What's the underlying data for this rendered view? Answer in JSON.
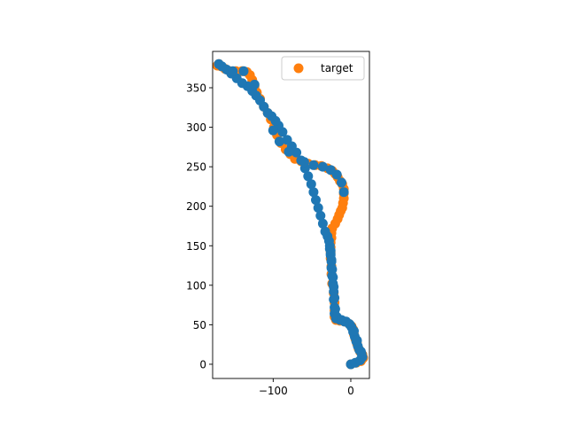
{
  "chart_data": {
    "type": "scatter",
    "title": "",
    "xlabel": "",
    "ylabel": "",
    "xlim": [
      -178,
      24
    ],
    "ylim": [
      -18,
      396
    ],
    "xticks": [
      -100,
      0
    ],
    "xtick_labels": [
      "−100",
      "0"
    ],
    "yticks": [
      0,
      50,
      100,
      150,
      200,
      250,
      300,
      350
    ],
    "ytick_labels": [
      "0",
      "50",
      "100",
      "150",
      "200",
      "250",
      "300",
      "350"
    ],
    "grid": false,
    "legend_position": "top-right",
    "legend": [
      "target"
    ],
    "series": [
      {
        "name": "target",
        "color": "#ff7f0e",
        "role": "target",
        "points": [
          [
            0,
            0
          ],
          [
            7,
            2
          ],
          [
            13,
            4
          ],
          [
            16,
            8
          ],
          [
            15,
            12
          ],
          [
            12,
            16
          ],
          [
            10,
            20
          ],
          [
            8,
            26
          ],
          [
            6,
            32
          ],
          [
            4,
            38
          ],
          [
            3,
            44
          ],
          [
            1,
            48
          ],
          [
            -2,
            51
          ],
          [
            -8,
            54
          ],
          [
            -14,
            55
          ],
          [
            -19,
            56
          ],
          [
            -21,
            60
          ],
          [
            -21,
            68
          ],
          [
            -21,
            78
          ],
          [
            -22,
            90
          ],
          [
            -24,
            102
          ],
          [
            -25,
            114
          ],
          [
            -25,
            124
          ],
          [
            -26,
            134
          ],
          [
            -26,
            142
          ],
          [
            -26,
            148
          ],
          [
            -26,
            154
          ],
          [
            -25,
            160
          ],
          [
            -25,
            166
          ],
          [
            -24,
            172
          ],
          [
            -20,
            178
          ],
          [
            -17,
            184
          ],
          [
            -15,
            189
          ],
          [
            -13,
            194
          ],
          [
            -11,
            198
          ],
          [
            -10,
            204
          ],
          [
            -9,
            210
          ],
          [
            -9,
            216
          ],
          [
            -9,
            222
          ],
          [
            -11,
            228
          ],
          [
            -14,
            232
          ],
          [
            -17,
            237
          ],
          [
            -20,
            241
          ],
          [
            -24,
            245
          ],
          [
            -30,
            248
          ],
          [
            -38,
            251
          ],
          [
            -46,
            252
          ],
          [
            -55,
            254
          ],
          [
            -64,
            257
          ],
          [
            -72,
            260
          ],
          [
            -78,
            266
          ],
          [
            -84,
            272
          ],
          [
            -90,
            280
          ],
          [
            -95,
            290
          ],
          [
            -99,
            300
          ],
          [
            -103,
            310
          ],
          [
            -107,
            318
          ],
          [
            -112,
            326
          ],
          [
            -117,
            336
          ],
          [
            -121,
            344
          ],
          [
            -124,
            352
          ],
          [
            -127,
            360
          ],
          [
            -130,
            366
          ],
          [
            -134,
            370
          ],
          [
            -140,
            371
          ],
          [
            -148,
            371
          ],
          [
            -156,
            371
          ],
          [
            -162,
            374
          ],
          [
            -167,
            377
          ],
          [
            -170,
            380
          ],
          [
            -172,
            378
          ]
        ]
      },
      {
        "name": "",
        "color": "#1f77b4",
        "role": "predicted",
        "points": [
          [
            0,
            0
          ],
          [
            6,
            2
          ],
          [
            12,
            5
          ],
          [
            15,
            9
          ],
          [
            14,
            13
          ],
          [
            11,
            18
          ],
          [
            9,
            23
          ],
          [
            7,
            29
          ],
          [
            5,
            35
          ],
          [
            3,
            41
          ],
          [
            1,
            47
          ],
          [
            -2,
            51
          ],
          [
            -8,
            54
          ],
          [
            -14,
            56
          ],
          [
            -19,
            58
          ],
          [
            -21,
            64
          ],
          [
            -21,
            72
          ],
          [
            -22,
            82
          ],
          [
            -22,
            92
          ],
          [
            -23,
            102
          ],
          [
            -24,
            112
          ],
          [
            -25,
            122
          ],
          [
            -25,
            130
          ],
          [
            -26,
            138
          ],
          [
            -26,
            144
          ],
          [
            -27,
            150
          ],
          [
            -28,
            156
          ],
          [
            -30,
            162
          ],
          [
            -33,
            168
          ],
          [
            -36,
            178
          ],
          [
            -39,
            188
          ],
          [
            -42,
            198
          ],
          [
            -45,
            208
          ],
          [
            -48,
            218
          ],
          [
            -51,
            228
          ],
          [
            -55,
            238
          ],
          [
            -59,
            248
          ],
          [
            -64,
            258
          ],
          [
            -70,
            268
          ],
          [
            -76,
            276
          ],
          [
            -82,
            284
          ],
          [
            -88,
            294
          ],
          [
            -93,
            302
          ],
          [
            -97,
            308
          ],
          [
            -102,
            314
          ],
          [
            -107,
            318
          ],
          [
            -112,
            326
          ],
          [
            -117,
            334
          ],
          [
            -122,
            340
          ],
          [
            -127,
            346
          ],
          [
            -133,
            352
          ],
          [
            -140,
            356
          ],
          [
            -147,
            362
          ],
          [
            -154,
            368
          ],
          [
            -160,
            373
          ],
          [
            -166,
            377
          ],
          [
            -170,
            380
          ],
          [
            -27,
            146
          ],
          [
            -26,
            140
          ],
          [
            -25,
            132
          ],
          [
            -24,
            120
          ],
          [
            -23,
            110
          ],
          [
            -22,
            98
          ],
          [
            -21,
            84
          ],
          [
            -20,
            70
          ],
          [
            -18,
            60
          ],
          [
            -12,
            56
          ],
          [
            -6,
            54
          ],
          [
            -1,
            50
          ],
          [
            4,
            42
          ],
          [
            8,
            30
          ],
          [
            13,
            16
          ],
          [
            -9,
            218
          ],
          [
            -12,
            230
          ],
          [
            -18,
            240
          ],
          [
            -26,
            246
          ],
          [
            -36,
            250
          ],
          [
            -48,
            252
          ],
          [
            -60,
            256
          ],
          [
            -80,
            269
          ],
          [
            -92,
            282
          ],
          [
            -100,
            296
          ],
          [
            -124,
            354
          ],
          [
            -138,
            371
          ],
          [
            -152,
            371
          ]
        ]
      }
    ]
  }
}
